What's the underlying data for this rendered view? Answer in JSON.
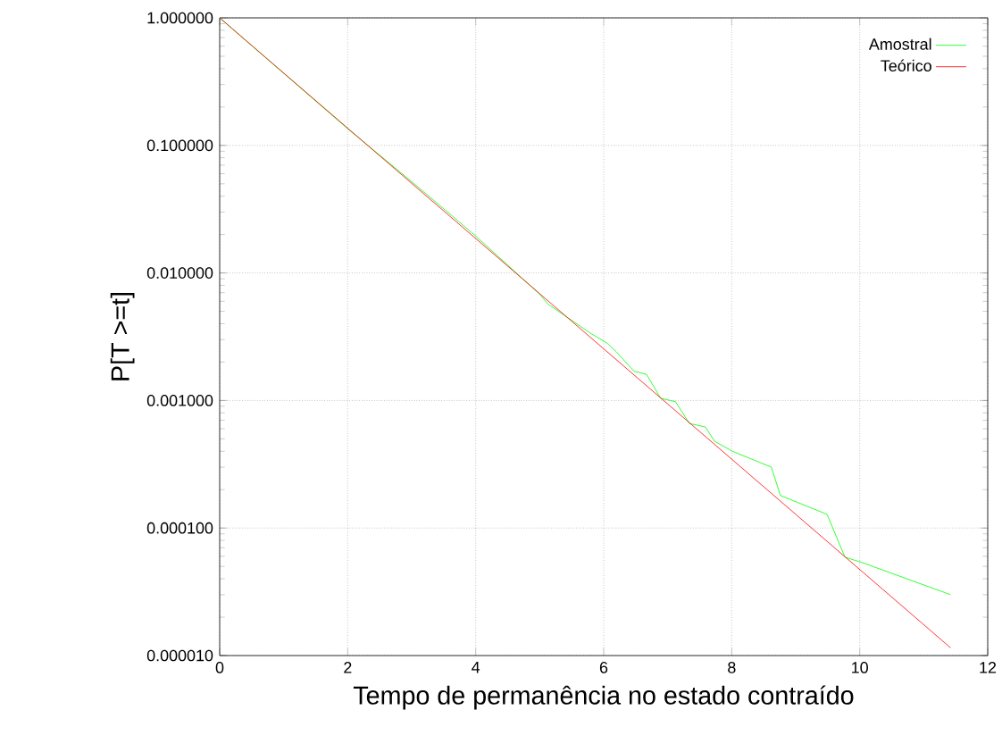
{
  "chart_data": {
    "type": "line",
    "xlabel": "Tempo de permanência no estado contraído",
    "ylabel": "P[T >=t]",
    "log": "y",
    "grid": true,
    "line_style": "solid",
    "marker": "none",
    "legend": "top right",
    "xlim": [
      0,
      12
    ],
    "xticks": [
      0,
      2,
      4,
      6,
      8,
      10,
      12
    ],
    "ylim": [
      1e-05,
      1
    ],
    "yticks": [
      {
        "value": 1e-05,
        "label": "0.000010"
      },
      {
        "value": 0.0001,
        "label": "0.000100"
      },
      {
        "value": 0.001,
        "label": "0.001000"
      },
      {
        "value": 0.01,
        "label": "0.010000"
      },
      {
        "value": 0.1,
        "label": "0.100000"
      },
      {
        "value": 1,
        "label": "1.000000"
      }
    ],
    "series": [
      {
        "name": "Amostral",
        "color": "#00ff00",
        "x": [
          0,
          2,
          3,
          4,
          5,
          5.13,
          5.78,
          6.06,
          6.2,
          6.47,
          6.67,
          6.89,
          7.12,
          7.34,
          7.59,
          7.73,
          8.01,
          8.62,
          8.76,
          9.49,
          9.77,
          10.02,
          11.42
        ],
        "values": [
          1,
          0.135,
          0.052,
          0.0195,
          0.0068,
          0.0057,
          0.0034,
          0.0028,
          0.0024,
          0.0017,
          0.0016,
          0.00104,
          0.00098,
          0.00066,
          0.00062,
          0.00048,
          0.0004,
          0.0003,
          0.00018,
          0.000128,
          5.9e-05,
          5.4e-05,
          3e-05
        ]
      },
      {
        "name": "Teórico",
        "color": "#ff0000",
        "x": [
          0,
          11.42
        ],
        "values": [
          1,
          1.15e-05
        ]
      }
    ]
  }
}
